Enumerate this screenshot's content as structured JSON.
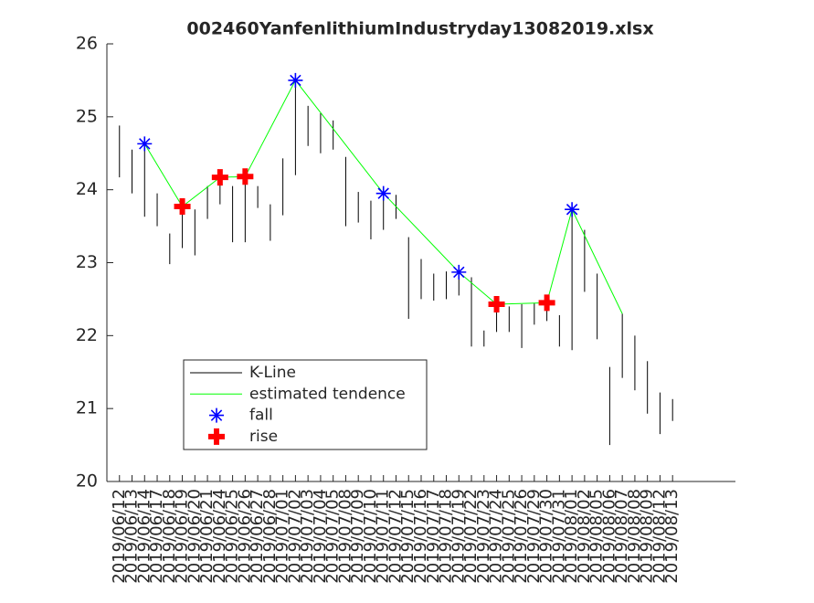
{
  "chart_data": {
    "type": "kline",
    "title": "002460YanfenlithiumIndustryday13082019.xlsx",
    "categories": [
      "2019/06/12",
      "2019/06/13",
      "2019/06/14",
      "2019/06/17",
      "2019/06/18",
      "2019/06/19",
      "2019/06/20",
      "2019/06/21",
      "2019/06/24",
      "2019/06/25",
      "2019/06/26",
      "2019/06/27",
      "2019/06/28",
      "2019/07/01",
      "2019/07/02",
      "2019/07/03",
      "2019/07/04",
      "2019/07/05",
      "2019/07/08",
      "2019/07/09",
      "2019/07/10",
      "2019/07/11",
      "2019/07/12",
      "2019/07/15",
      "2019/07/16",
      "2019/07/17",
      "2019/07/18",
      "2019/07/19",
      "2019/07/22",
      "2019/07/23",
      "2019/07/24",
      "2019/07/25",
      "2019/07/26",
      "2019/07/29",
      "2019/07/30",
      "2019/07/31",
      "2019/08/01",
      "2019/08/02",
      "2019/08/05",
      "2019/08/06",
      "2019/08/07",
      "2019/08/08",
      "2019/08/09",
      "2019/08/12",
      "2019/08/13"
    ],
    "series": [
      {
        "name": "K-Line",
        "color": "#000000",
        "low": [
          24.17,
          23.95,
          23.63,
          23.5,
          22.98,
          23.2,
          23.1,
          23.6,
          23.8,
          23.28,
          23.28,
          23.75,
          23.3,
          23.65,
          24.2,
          24.6,
          24.5,
          24.55,
          23.5,
          23.55,
          23.32,
          23.45,
          23.6,
          22.23,
          22.5,
          22.48,
          22.5,
          22.55,
          21.85,
          21.85,
          22.05,
          22.05,
          21.83,
          22.15,
          22.2,
          21.85,
          21.8,
          22.6,
          21.95,
          20.5,
          21.42,
          21.25,
          20.93,
          20.65,
          20.83
        ],
        "high": [
          24.88,
          24.55,
          24.65,
          23.95,
          23.4,
          23.75,
          23.73,
          24.05,
          24.25,
          24.05,
          24.1,
          24.05,
          23.8,
          24.43,
          25.55,
          25.15,
          25.05,
          24.95,
          24.45,
          23.97,
          23.85,
          24.0,
          23.93,
          23.35,
          23.05,
          22.85,
          22.88,
          22.9,
          22.8,
          22.07,
          22.43,
          22.4,
          22.43,
          22.45,
          22.55,
          22.28,
          23.75,
          23.45,
          22.85,
          21.57,
          22.3,
          22.0,
          21.65,
          21.22,
          21.13
        ]
      },
      {
        "name": "estimated tendence",
        "color": "#00ff00",
        "x": [
          "2019/06/14",
          "2019/06/19",
          "2019/06/24",
          "2019/06/26",
          "2019/07/02",
          "2019/07/11",
          "2019/07/19",
          "2019/07/24",
          "2019/07/30",
          "2019/08/01",
          "2019/08/07"
        ],
        "values": [
          24.63,
          23.77,
          24.17,
          24.18,
          25.5,
          23.95,
          22.87,
          22.43,
          22.45,
          23.73,
          22.3
        ]
      },
      {
        "name": "fall",
        "color": "#0000ff",
        "x": [
          "2019/06/14",
          "2019/07/02",
          "2019/07/11",
          "2019/07/19",
          "2019/08/01"
        ],
        "values": [
          24.63,
          25.5,
          23.95,
          22.87,
          23.73
        ]
      },
      {
        "name": "rise",
        "color": "#ff0000",
        "x": [
          "2019/06/19",
          "2019/06/24",
          "2019/06/26",
          "2019/07/24",
          "2019/07/30"
        ],
        "values": [
          23.77,
          24.17,
          24.18,
          22.43,
          22.45
        ]
      }
    ],
    "ylim": [
      20,
      26
    ],
    "yticks": [
      20,
      21,
      22,
      23,
      24,
      25,
      26
    ]
  }
}
